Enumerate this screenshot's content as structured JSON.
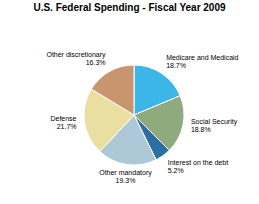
{
  "chart_data": {
    "type": "pie",
    "title": "U.S. Federal Spending - Fiscal Year 2009",
    "categories": [
      "Medicare and Medicaid",
      "Social Security",
      "Interest on the debt",
      "Other mandatory",
      "Defense",
      "Other discretionary"
    ],
    "values": [
      18.7,
      18.8,
      5.2,
      19.3,
      21.7,
      16.3
    ],
    "value_labels": [
      "18.7%",
      "18.8%",
      "5.2%",
      "19.3%",
      "21.7%",
      "16.3%"
    ],
    "colors": [
      "#3cb5e8",
      "#8faa7c",
      "#2e6fa3",
      "#aec8d8",
      "#e8dfa0",
      "#c8956e"
    ]
  }
}
